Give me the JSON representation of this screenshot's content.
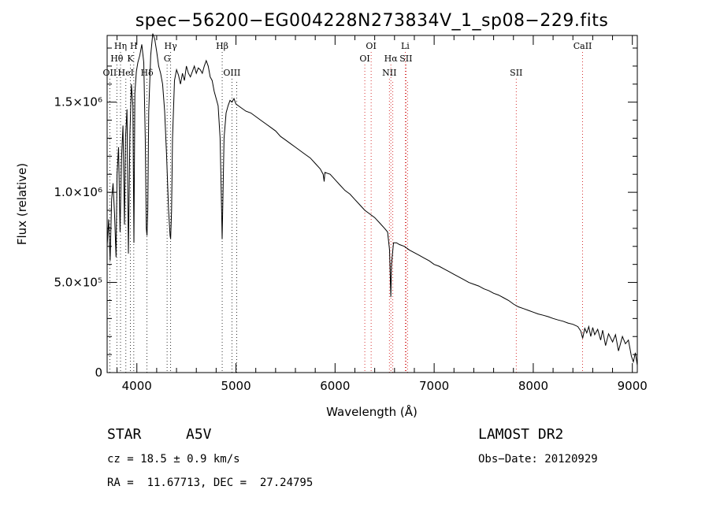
{
  "chart_data": {
    "type": "line",
    "title": "spec−56200−EG004228N273834V_1_sp08−229.fits",
    "xlabel": "Wavelength (Å)",
    "ylabel": "Flux (relative)",
    "xlim": [
      3700,
      9050
    ],
    "ylim": [
      0,
      1870000
    ],
    "xticks": [
      {
        "value": 4000,
        "label": "4000"
      },
      {
        "value": 5000,
        "label": "5000"
      },
      {
        "value": 6000,
        "label": "6000"
      },
      {
        "value": 7000,
        "label": "7000"
      },
      {
        "value": 8000,
        "label": "8000"
      },
      {
        "value": 9000,
        "label": "9000"
      }
    ],
    "yticks": [
      {
        "value": 0,
        "label": "0"
      },
      {
        "value": 500000,
        "label": "5.0×10⁵"
      },
      {
        "value": 1000000,
        "label": "1.0×10⁶"
      },
      {
        "value": 1500000,
        "label": "1.5×10⁶"
      }
    ],
    "spectral_lines": [
      {
        "label": "OII",
        "wavelength": 3727,
        "color": "#000000",
        "row": 3
      },
      {
        "label": "Hθ",
        "wavelength": 3798,
        "color": "#000000",
        "row": 2
      },
      {
        "label": "Hη",
        "wavelength": 3835,
        "color": "#000000",
        "row": 1
      },
      {
        "label": "HeI",
        "wavelength": 3889,
        "color": "#000000",
        "row": 3
      },
      {
        "label": "K",
        "wavelength": 3934,
        "color": "#000000",
        "row": 2
      },
      {
        "label": "H",
        "wavelength": 3969,
        "color": "#000000",
        "row": 1
      },
      {
        "label": "Hδ",
        "wavelength": 4102,
        "color": "#000000",
        "row": 3
      },
      {
        "label": "G",
        "wavelength": 4305,
        "color": "#000000",
        "row": 2
      },
      {
        "label": "Hγ",
        "wavelength": 4341,
        "color": "#000000",
        "row": 1
      },
      {
        "label": "Hβ",
        "wavelength": 4861,
        "color": "#000000",
        "row": 1
      },
      {
        "label": "OIII",
        "wavelength": 4959,
        "color": "#000000",
        "row": 3
      },
      {
        "label": "OIII",
        "wavelength": 5007,
        "color": "#000000",
        "row": -1
      },
      {
        "label": "OI",
        "wavelength": 6300,
        "color": "#cc0000",
        "row": 2
      },
      {
        "label": "OI",
        "wavelength": 6364,
        "color": "#cc0000",
        "row": 1
      },
      {
        "label": "NII",
        "wavelength": 6548,
        "color": "#cc0000",
        "row": 3
      },
      {
        "label": "Hα",
        "wavelength": 6563,
        "color": "#cc0000",
        "row": 2
      },
      {
        "label": "NII",
        "wavelength": 6583,
        "color": "#cc0000",
        "row": -1
      },
      {
        "label": "Li",
        "wavelength": 6708,
        "color": "#cc0000",
        "row": 1
      },
      {
        "label": "SII",
        "wavelength": 6716,
        "color": "#cc0000",
        "row": 2
      },
      {
        "label": "SII",
        "wavelength": 6731,
        "color": "#cc0000",
        "row": -1
      },
      {
        "label": "SII",
        "wavelength": 7828,
        "color": "#cc0000",
        "row": 3
      },
      {
        "label": "CaII",
        "wavelength": 8498,
        "color": "#cc0000",
        "row": 1
      }
    ],
    "series": [
      {
        "color": "#000000",
        "points": [
          [
            3700,
            700000
          ],
          [
            3715,
            850000
          ],
          [
            3730,
            620000
          ],
          [
            3745,
            960000
          ],
          [
            3760,
            1050000
          ],
          [
            3775,
            880000
          ],
          [
            3790,
            640000
          ],
          [
            3800,
            1100000
          ],
          [
            3815,
            1250000
          ],
          [
            3830,
            780000
          ],
          [
            3845,
            1180000
          ],
          [
            3860,
            1370000
          ],
          [
            3875,
            820000
          ],
          [
            3885,
            1300000
          ],
          [
            3900,
            1460000
          ],
          [
            3915,
            660000
          ],
          [
            3930,
            1320000
          ],
          [
            3945,
            1600000
          ],
          [
            3960,
            1480000
          ],
          [
            3970,
            720000
          ],
          [
            3980,
            1550000
          ],
          [
            3995,
            1670000
          ],
          [
            4010,
            1720000
          ],
          [
            4030,
            1760000
          ],
          [
            4050,
            1820000
          ],
          [
            4070,
            1720000
          ],
          [
            4085,
            1300000
          ],
          [
            4095,
            800000
          ],
          [
            4102,
            760000
          ],
          [
            4110,
            900000
          ],
          [
            4120,
            1450000
          ],
          [
            4140,
            1760000
          ],
          [
            4160,
            1880000
          ],
          [
            4180,
            1850000
          ],
          [
            4200,
            1780000
          ],
          [
            4220,
            1700000
          ],
          [
            4240,
            1660000
          ],
          [
            4260,
            1600000
          ],
          [
            4280,
            1450000
          ],
          [
            4300,
            1200000
          ],
          [
            4320,
            900000
          ],
          [
            4335,
            760000
          ],
          [
            4341,
            740000
          ],
          [
            4350,
            900000
          ],
          [
            4360,
            1300000
          ],
          [
            4380,
            1620000
          ],
          [
            4400,
            1680000
          ],
          [
            4420,
            1650000
          ],
          [
            4440,
            1600000
          ],
          [
            4460,
            1660000
          ],
          [
            4480,
            1620000
          ],
          [
            4500,
            1700000
          ],
          [
            4520,
            1660000
          ],
          [
            4540,
            1640000
          ],
          [
            4560,
            1670000
          ],
          [
            4580,
            1700000
          ],
          [
            4600,
            1660000
          ],
          [
            4620,
            1690000
          ],
          [
            4640,
            1680000
          ],
          [
            4660,
            1660000
          ],
          [
            4680,
            1700000
          ],
          [
            4700,
            1730000
          ],
          [
            4720,
            1700000
          ],
          [
            4740,
            1640000
          ],
          [
            4760,
            1620000
          ],
          [
            4780,
            1560000
          ],
          [
            4800,
            1520000
          ],
          [
            4820,
            1480000
          ],
          [
            4840,
            1300000
          ],
          [
            4855,
            900000
          ],
          [
            4861,
            740000
          ],
          [
            4868,
            950000
          ],
          [
            4880,
            1300000
          ],
          [
            4900,
            1440000
          ],
          [
            4920,
            1480000
          ],
          [
            4940,
            1510000
          ],
          [
            4960,
            1500000
          ],
          [
            4980,
            1520000
          ],
          [
            5000,
            1490000
          ],
          [
            5050,
            1470000
          ],
          [
            5100,
            1450000
          ],
          [
            5150,
            1440000
          ],
          [
            5200,
            1420000
          ],
          [
            5250,
            1400000
          ],
          [
            5300,
            1380000
          ],
          [
            5350,
            1360000
          ],
          [
            5400,
            1340000
          ],
          [
            5450,
            1310000
          ],
          [
            5500,
            1290000
          ],
          [
            5550,
            1270000
          ],
          [
            5600,
            1250000
          ],
          [
            5650,
            1230000
          ],
          [
            5700,
            1210000
          ],
          [
            5750,
            1190000
          ],
          [
            5800,
            1160000
          ],
          [
            5850,
            1130000
          ],
          [
            5880,
            1100000
          ],
          [
            5890,
            1060000
          ],
          [
            5897,
            1110000
          ],
          [
            5950,
            1100000
          ],
          [
            6000,
            1070000
          ],
          [
            6050,
            1040000
          ],
          [
            6100,
            1010000
          ],
          [
            6150,
            990000
          ],
          [
            6200,
            960000
          ],
          [
            6250,
            930000
          ],
          [
            6300,
            900000
          ],
          [
            6350,
            880000
          ],
          [
            6400,
            860000
          ],
          [
            6450,
            830000
          ],
          [
            6500,
            800000
          ],
          [
            6530,
            780000
          ],
          [
            6550,
            680000
          ],
          [
            6563,
            420000
          ],
          [
            6570,
            600000
          ],
          [
            6590,
            720000
          ],
          [
            6620,
            720000
          ],
          [
            6650,
            710000
          ],
          [
            6700,
            700000
          ],
          [
            6750,
            680000
          ],
          [
            6800,
            665000
          ],
          [
            6850,
            650000
          ],
          [
            6900,
            635000
          ],
          [
            6950,
            620000
          ],
          [
            7000,
            600000
          ],
          [
            7050,
            590000
          ],
          [
            7100,
            575000
          ],
          [
            7150,
            560000
          ],
          [
            7200,
            545000
          ],
          [
            7250,
            530000
          ],
          [
            7300,
            515000
          ],
          [
            7350,
            500000
          ],
          [
            7400,
            490000
          ],
          [
            7450,
            480000
          ],
          [
            7500,
            465000
          ],
          [
            7550,
            455000
          ],
          [
            7600,
            440000
          ],
          [
            7650,
            430000
          ],
          [
            7700,
            415000
          ],
          [
            7750,
            400000
          ],
          [
            7800,
            380000
          ],
          [
            7850,
            365000
          ],
          [
            7900,
            355000
          ],
          [
            7950,
            345000
          ],
          [
            8000,
            335000
          ],
          [
            8050,
            325000
          ],
          [
            8100,
            318000
          ],
          [
            8150,
            310000
          ],
          [
            8200,
            300000
          ],
          [
            8250,
            292000
          ],
          [
            8300,
            285000
          ],
          [
            8350,
            275000
          ],
          [
            8400,
            268000
          ],
          [
            8450,
            255000
          ],
          [
            8480,
            230000
          ],
          [
            8498,
            190000
          ],
          [
            8520,
            245000
          ],
          [
            8540,
            220000
          ],
          [
            8560,
            255000
          ],
          [
            8580,
            200000
          ],
          [
            8600,
            250000
          ],
          [
            8620,
            210000
          ],
          [
            8650,
            240000
          ],
          [
            8680,
            180000
          ],
          [
            8700,
            235000
          ],
          [
            8730,
            150000
          ],
          [
            8760,
            215000
          ],
          [
            8800,
            170000
          ],
          [
            8830,
            210000
          ],
          [
            8860,
            120000
          ],
          [
            8900,
            200000
          ],
          [
            8930,
            160000
          ],
          [
            8960,
            180000
          ],
          [
            8990,
            90000
          ],
          [
            9010,
            60000
          ],
          [
            9030,
            110000
          ],
          [
            9050,
            40000
          ]
        ]
      }
    ]
  },
  "info": {
    "object_type": "STAR",
    "subclass": "A5V",
    "survey": "LAMOST DR2",
    "cz": "cz = 18.5 ± 0.9 km/s",
    "obs_date": "Obs−Date: 20120929",
    "coords": "RA =  11.67713, DEC =  27.24795"
  }
}
